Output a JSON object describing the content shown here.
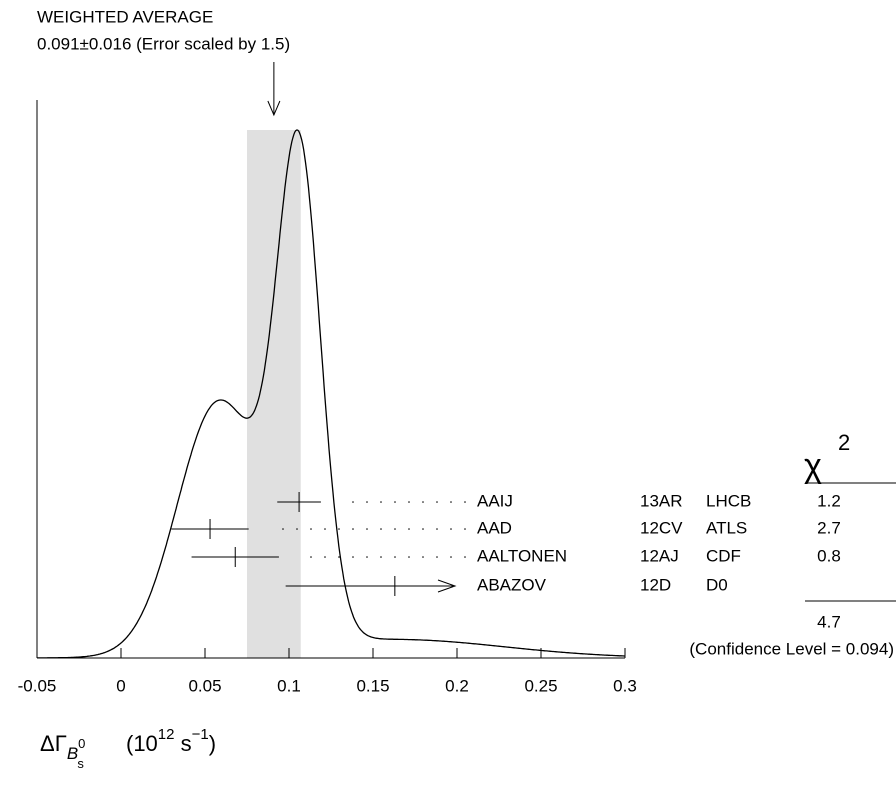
{
  "chart_data": {
    "type": "ideogram",
    "title": "WEIGHTED AVERAGE",
    "subtitle": "0.091±0.016 (Error scaled by 1.5)",
    "average": 0.091,
    "average_error": 0.016,
    "xlim": [
      -0.05,
      0.3
    ],
    "xticks": [
      -0.05,
      0,
      0.05,
      0.1,
      0.15,
      0.2,
      0.25,
      0.3
    ],
    "x_label": {
      "symbol": "ΔΓ",
      "sub": "B",
      "sub_sup": "0",
      "sub_sub": "s",
      "unit_open": "(10",
      "unit_exp": "12",
      "unit_mid": " s",
      "unit_exp2": "−1",
      "unit_close": ")"
    },
    "chi2_header": {
      "symbol": "χ",
      "sup": "2"
    },
    "measurements": [
      {
        "name": "AAIJ",
        "document": "13AR",
        "experiment": "LHCB",
        "value": 0.106,
        "error": 0.013,
        "chi2": 1.2
      },
      {
        "name": "AAD",
        "document": "12CV",
        "experiment": "ATLS",
        "value": 0.053,
        "error": 0.023,
        "chi2": 2.7
      },
      {
        "name": "AALTONEN",
        "document": "12AJ",
        "experiment": "CDF",
        "value": 0.068,
        "error": 0.026,
        "chi2": 0.8
      },
      {
        "name": "ABAZOV",
        "document": "12D",
        "experiment": "D0",
        "value": 0.163,
        "error": 0.065,
        "chi2": null
      }
    ],
    "chi2_total": 4.7,
    "confidence_level_label": "(Confidence Level = 0.094)"
  }
}
